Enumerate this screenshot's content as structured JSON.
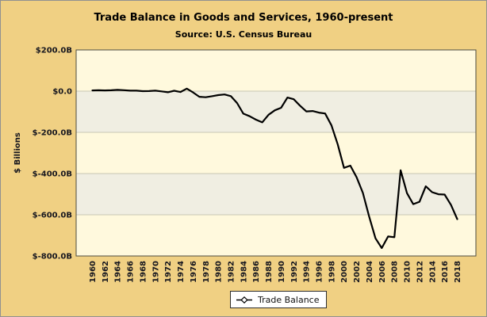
{
  "header": {
    "title": "Trade Balance in Goods and Services, 1960-present",
    "subtitle": "Source: U.S. Census Bureau"
  },
  "legend": {
    "label": "Trade Balance"
  },
  "chart_data": {
    "type": "line",
    "title": "Trade Balance in Goods and Services, 1960-present",
    "subtitle": "Source: U.S. Census Bureau",
    "xlabel": "",
    "ylabel": "$ Billions",
    "x": [
      1960,
      1961,
      1962,
      1963,
      1964,
      1965,
      1966,
      1967,
      1968,
      1969,
      1970,
      1971,
      1972,
      1973,
      1974,
      1975,
      1976,
      1977,
      1978,
      1979,
      1980,
      1981,
      1982,
      1983,
      1984,
      1985,
      1986,
      1987,
      1988,
      1989,
      1990,
      1991,
      1992,
      1993,
      1994,
      1995,
      1996,
      1997,
      1998,
      1999,
      2000,
      2001,
      2002,
      2003,
      2004,
      2005,
      2006,
      2007,
      2008,
      2009,
      2010,
      2011,
      2012,
      2013,
      2014,
      2015,
      2016,
      2017,
      2018
    ],
    "series": [
      {
        "name": "Trade Balance",
        "values": [
          3.5,
          4.2,
          3.4,
          4.2,
          6.0,
          4.7,
          2.4,
          2.3,
          0.1,
          0.4,
          2.3,
          -1.3,
          -5.4,
          1.9,
          -4.3,
          12.4,
          -6.1,
          -27.2,
          -29.8,
          -24.6,
          -19.4,
          -16.2,
          -24.2,
          -57.8,
          -109.1,
          -121.9,
          -138.5,
          -151.7,
          -114.6,
          -93.1,
          -80.9,
          -31.1,
          -39.2,
          -70.3,
          -98.5,
          -96.4,
          -104.1,
          -108.3,
          -166.1,
          -258.6,
          -372.5,
          -361.5,
          -418.0,
          -493.9,
          -609.9,
          -714.2,
          -761.7,
          -705.4,
          -708.7,
          -383.8,
          -495.0,
          -548.6,
          -536.8,
          -461.9,
          -490.2,
          -500.4,
          -502.0,
          -552.3,
          -621.0
        ]
      }
    ],
    "ylim": [
      -800,
      200
    ],
    "ytick_values": [
      200,
      0,
      -200,
      -400,
      -600,
      -800
    ],
    "ytick_labels": [
      "$200.0B",
      "$0.0",
      "$-200.0B",
      "$-400.0B",
      "$-600.0B",
      "$-800.0B"
    ],
    "xtick_values": [
      1960,
      1962,
      1964,
      1966,
      1968,
      1970,
      1972,
      1974,
      1976,
      1978,
      1980,
      1982,
      1984,
      1986,
      1988,
      1990,
      1992,
      1994,
      1996,
      1998,
      2000,
      2002,
      2004,
      2006,
      2008,
      2010,
      2012,
      2014,
      2016,
      2018
    ],
    "xtick_labels": [
      "1960",
      "1962",
      "1964",
      "1966",
      "1968",
      "1970",
      "1972",
      "1974",
      "1976",
      "1978",
      "1980",
      "1982",
      "1984",
      "1986",
      "1988",
      "1990",
      "1992",
      "1994",
      "1996",
      "1998",
      "2000",
      "2002",
      "2004",
      "2006",
      "2008",
      "2010",
      "2012",
      "2014",
      "2016",
      "2018"
    ],
    "grid": true,
    "legend_position": "bottom",
    "colors": {
      "background": "#F0D083",
      "band_light": "#FFF9DD",
      "band_dark": "#F0EEE2",
      "grid": "#C9C6B4",
      "axis": "#4C4B40",
      "line": "#000000",
      "legend_bg": "#FFFFFF"
    }
  }
}
